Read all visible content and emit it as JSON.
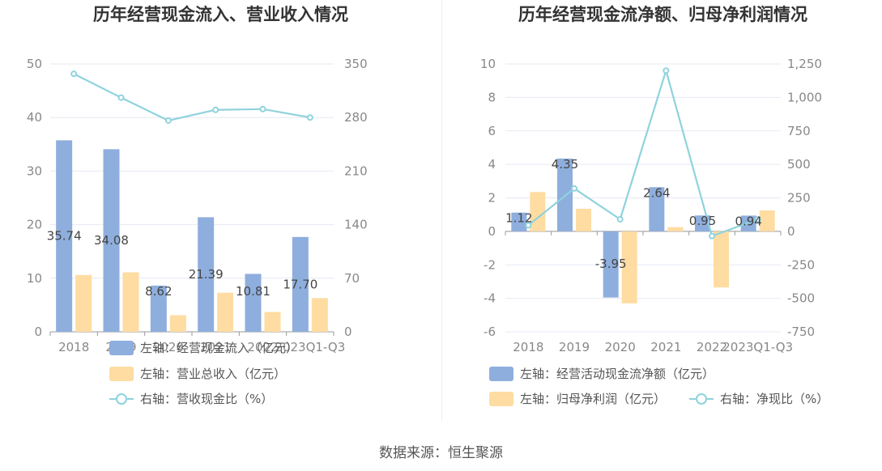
{
  "source": "数据来源：恒生聚源",
  "colors": {
    "bar1": "#8eaedd",
    "bar2": "#fedca2",
    "line": "#8fd3dd",
    "grid": "#e6e9f2",
    "axis": "#999999"
  },
  "chart_data": [
    {
      "type": "bar",
      "title": "历年经营现金流入、营业收入情况",
      "categories": [
        "2018",
        "2019",
        "2020",
        "2021",
        "2022",
        "2023Q1-Q3"
      ],
      "ylim_left": [
        0,
        50
      ],
      "yticks_left": [
        "0",
        "10",
        "20",
        "30",
        "40",
        "50"
      ],
      "ylim_right": [
        0,
        350
      ],
      "yticks_right": [
        "0",
        "70",
        "140",
        "210",
        "280",
        "350"
      ],
      "series": [
        {
          "name": "左轴：经营现金流入（亿元）",
          "axis": "left",
          "kind": "bar",
          "values": [
            35.74,
            34.08,
            8.62,
            21.39,
            10.81,
            17.7
          ],
          "labels": [
            "35.74",
            "34.08",
            "8.62",
            "21.39",
            "10.81",
            "17.70"
          ]
        },
        {
          "name": "左轴：营业总收入（亿元）",
          "axis": "left",
          "kind": "bar",
          "values": [
            10.6,
            11.1,
            3.1,
            7.3,
            3.7,
            6.3
          ]
        },
        {
          "name": "右轴：营收现金比（%）",
          "axis": "right",
          "kind": "line",
          "values": [
            337,
            306,
            276,
            290,
            291,
            280
          ]
        }
      ],
      "grid": true
    },
    {
      "type": "bar",
      "title": "历年经营现金流净额、归母净利润情况",
      "categories": [
        "2018",
        "2019",
        "2020",
        "2021",
        "2022",
        "2023Q1-Q3"
      ],
      "ylim_left": [
        -6,
        10
      ],
      "yticks_left": [
        "-6",
        "-4",
        "-2",
        "0",
        "2",
        "4",
        "6",
        "8",
        "10"
      ],
      "ylim_right": [
        -750,
        1250
      ],
      "yticks_right": [
        "-750",
        "-500",
        "-250",
        "0",
        "250",
        "500",
        "750",
        "1,000",
        "1,250"
      ],
      "series": [
        {
          "name": "左轴：经营活动现金流净额（亿元）",
          "axis": "left",
          "kind": "bar",
          "values": [
            1.12,
            4.35,
            -3.95,
            2.64,
            0.95,
            0.94
          ],
          "labels": [
            "1.12",
            "4.35",
            "-3.95",
            "2.64",
            "0.95",
            "0.94"
          ]
        },
        {
          "name": "左轴：归母净利润（亿元）",
          "axis": "left",
          "kind": "bar",
          "values": [
            2.35,
            1.35,
            -4.3,
            0.25,
            -3.35,
            1.25
          ]
        },
        {
          "name": "右轴：净现比（%）",
          "axis": "right",
          "kind": "line",
          "values": [
            45,
            320,
            90,
            1200,
            -35,
            90
          ]
        }
      ],
      "grid": true
    }
  ]
}
